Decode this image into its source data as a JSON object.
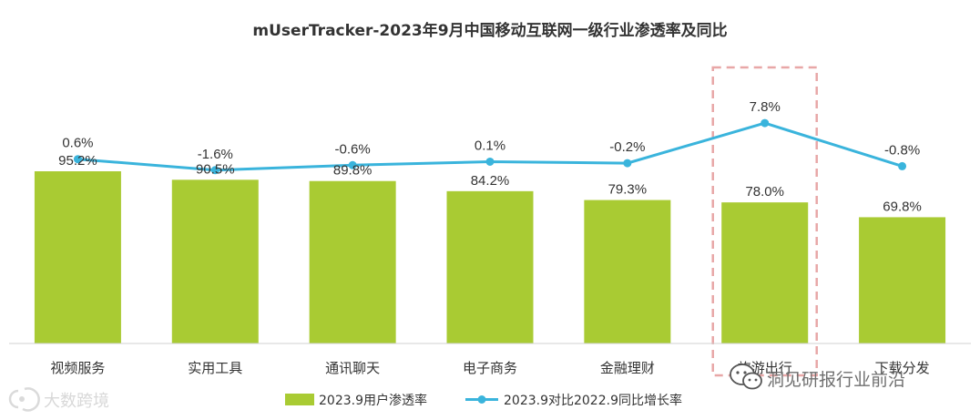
{
  "chart_data": {
    "type": "bar",
    "title": "mUserTracker-2023年9月中国移动互联网一级行业渗透率及同比",
    "categories": [
      "视频服务",
      "实用工具",
      "通讯聊天",
      "电子商务",
      "金融理财",
      "旅游出行",
      "下载分发"
    ],
    "series": [
      {
        "name": "2023.9用户渗透率",
        "type": "bar",
        "color": "#a9cb33",
        "values": [
          95.2,
          90.5,
          89.8,
          84.2,
          79.3,
          78.0,
          69.8
        ],
        "labels": [
          "95.2%",
          "90.5%",
          "89.8%",
          "84.2%",
          "79.3%",
          "78.0%",
          "69.8%"
        ]
      },
      {
        "name": "2023.9对比2022.9同比增长率",
        "type": "line",
        "color": "#3ab4dc",
        "values": [
          0.6,
          -1.6,
          -0.6,
          0.1,
          -0.2,
          7.8,
          -0.8
        ],
        "labels": [
          "0.6%",
          "-1.6%",
          "-0.6%",
          "0.1%",
          "-0.2%",
          "7.8%",
          "-0.8%"
        ]
      }
    ],
    "highlight_category": "旅游出行",
    "ylim_bar": [
      0,
      105
    ],
    "ylim_line": [
      -20,
      18
    ],
    "grid": false,
    "legend_position": "bottom"
  },
  "watermarks": {
    "left": "大数跨境",
    "right": "洞见研报行业前沿"
  }
}
